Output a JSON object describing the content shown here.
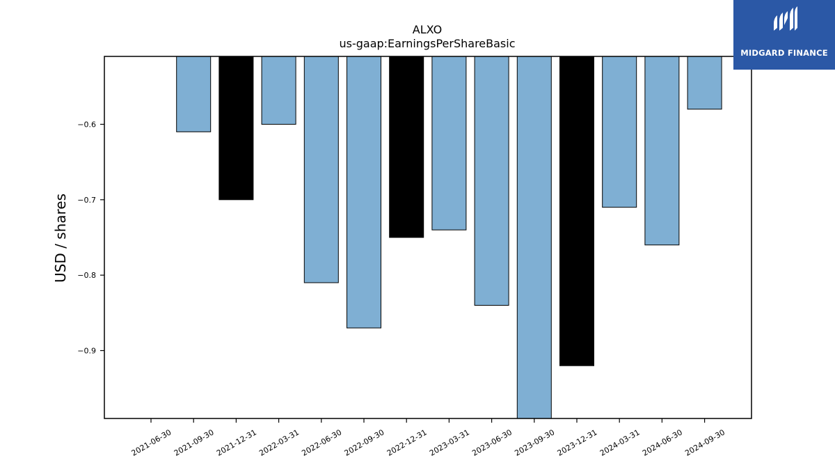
{
  "brand": {
    "name": "MIDGARD FINANCE",
    "color": "#2b58a6"
  },
  "chart_data": {
    "type": "bar",
    "title": "ALXO",
    "subtitle": "us-gaap:EarningsPerShareBasic",
    "xlabel": "",
    "ylabel": "USD / shares",
    "categories": [
      "2021-06-30",
      "2021-09-30",
      "2021-12-31",
      "2022-03-31",
      "2022-06-30",
      "2022-09-30",
      "2022-12-31",
      "2023-03-31",
      "2023-06-30",
      "2023-09-30",
      "2023-12-31",
      "2024-03-31",
      "2024-06-30",
      "2024-09-30"
    ],
    "values": [
      null,
      -0.61,
      -0.7,
      -0.6,
      -0.81,
      -0.87,
      -0.75,
      -0.74,
      -0.84,
      -0.99,
      -0.92,
      -0.71,
      -0.76,
      -0.58
    ],
    "highlight": [
      false,
      false,
      true,
      false,
      false,
      false,
      true,
      false,
      false,
      false,
      true,
      false,
      false,
      false
    ],
    "ylim": [
      -0.99,
      -0.51
    ],
    "yticks": [
      -0.6,
      -0.7,
      -0.8,
      -0.9
    ],
    "ytick_labels": [
      "−0.6",
      "−0.7",
      "−0.8",
      "−0.9"
    ],
    "bar_color": "#7fafd3",
    "highlight_color": "#000000",
    "grid": false,
    "legend": "none"
  }
}
